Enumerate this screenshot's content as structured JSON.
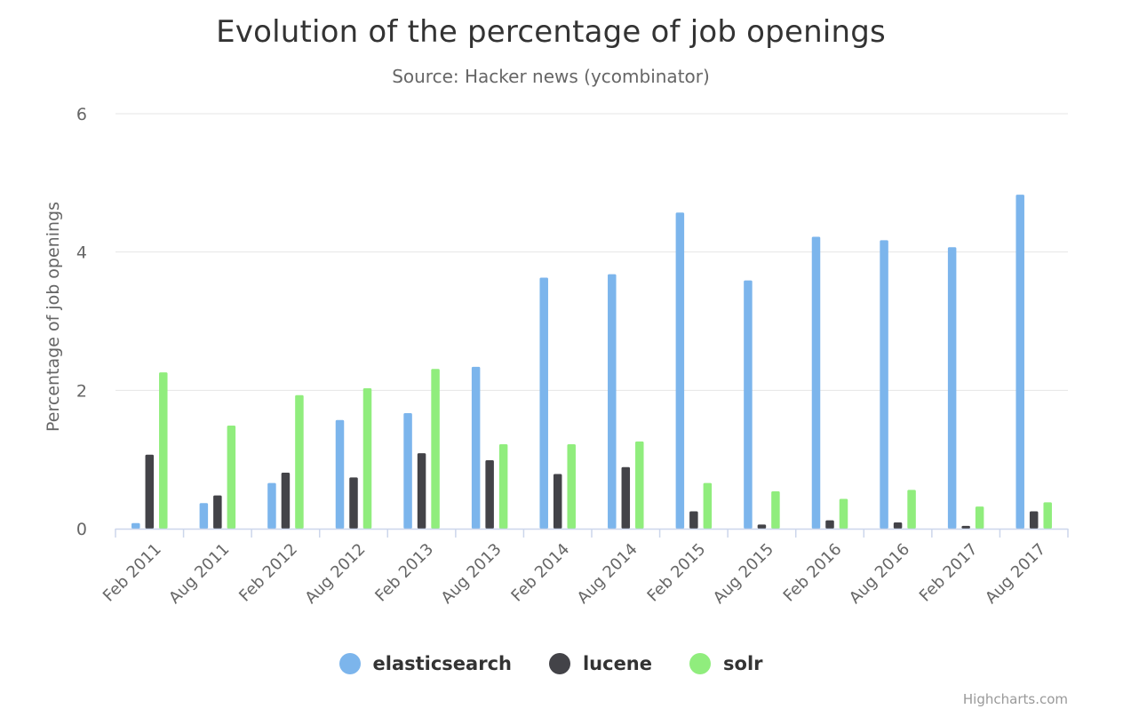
{
  "title": "Evolution of the percentage of job openings",
  "subtitle": "Source: Hacker news (ycombinator)",
  "credits": "Highcharts.com",
  "colors": {
    "elasticsearch": "#7cb5ec",
    "lucene": "#434348",
    "solr": "#90ed7d",
    "grid": "#e6e6e6",
    "axis_text": "#666666"
  },
  "chart_data": {
    "type": "bar",
    "title": "Evolution of the percentage of job openings",
    "subtitle": "Source: Hacker news (ycombinator)",
    "xlabel": "",
    "ylabel": "Percentage of job openings",
    "ylim": [
      0,
      6
    ],
    "yticks": [
      0,
      2,
      4,
      6
    ],
    "grid": true,
    "legend_position": "bottom-center",
    "categories": [
      "Feb 2011",
      "Aug 2011",
      "Feb 2012",
      "Aug 2012",
      "Feb 2013",
      "Aug 2013",
      "Feb 2014",
      "Aug 2014",
      "Feb 2015",
      "Aug 2015",
      "Feb 2016",
      "Aug 2016",
      "Feb 2017",
      "Aug 2017"
    ],
    "series": [
      {
        "name": "elasticsearch",
        "color": "#7cb5ec",
        "values": [
          0.08,
          0.37,
          0.66,
          1.57,
          1.67,
          2.34,
          3.63,
          3.68,
          4.57,
          3.59,
          4.22,
          4.17,
          4.07,
          4.83
        ]
      },
      {
        "name": "lucene",
        "color": "#434348",
        "values": [
          1.07,
          0.48,
          0.81,
          0.74,
          1.09,
          0.99,
          0.79,
          0.89,
          0.25,
          0.06,
          0.12,
          0.09,
          0.04,
          0.25
        ]
      },
      {
        "name": "solr",
        "color": "#90ed7d",
        "values": [
          2.26,
          1.49,
          1.93,
          2.03,
          2.31,
          1.22,
          1.22,
          1.26,
          0.66,
          0.54,
          0.43,
          0.56,
          0.32,
          0.38
        ]
      }
    ]
  }
}
